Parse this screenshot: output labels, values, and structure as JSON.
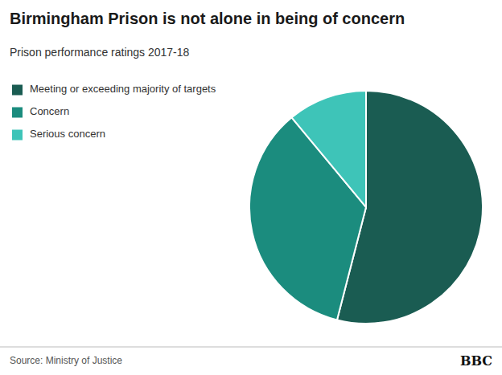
{
  "chart_data": {
    "type": "pie",
    "title": "Birmingham Prison is not alone in being of concern",
    "subtitle": "Prison performance ratings 2017-18",
    "categories": [
      "Meeting or exceeding majority of targets",
      "Concern",
      "Serious concern"
    ],
    "values": [
      54,
      35,
      11
    ],
    "colors": [
      "#1a5c52",
      "#1b8c7e",
      "#3ec4b8"
    ],
    "legend": "upper left",
    "annotations": [
      "Source: Ministry of Justice",
      "BBC"
    ]
  }
}
